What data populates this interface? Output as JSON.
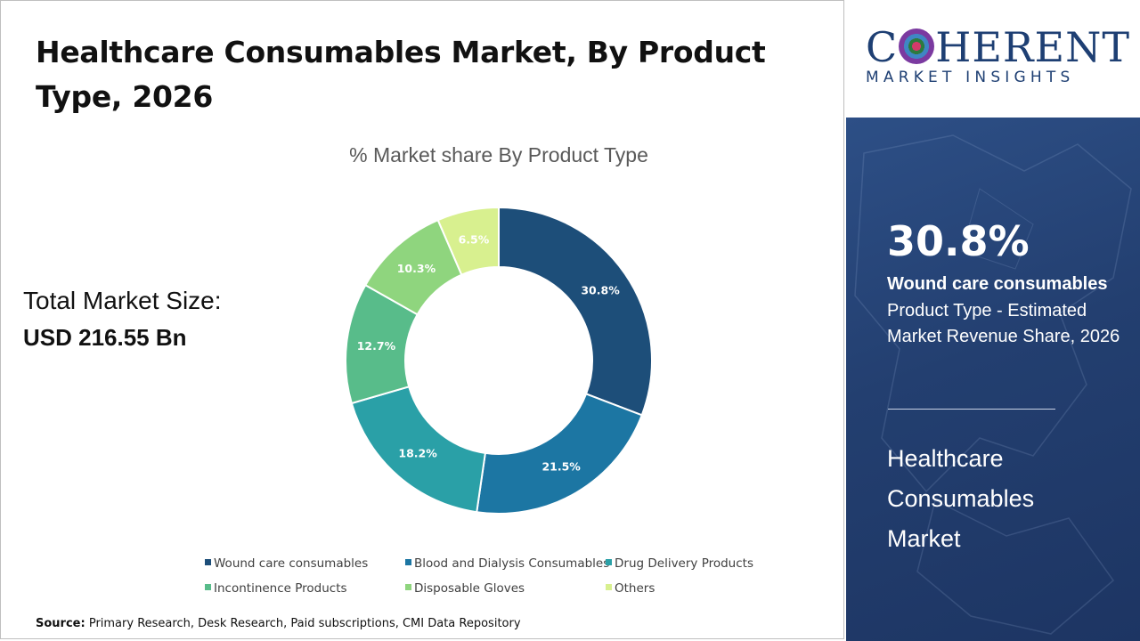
{
  "title": "Healthcare Consumables Market, By Product Type, 2026",
  "total_market": {
    "label": "Total Market Size:",
    "value": "USD 216.55 Bn"
  },
  "source": {
    "label": "Source:",
    "text": "Primary Research, Desk Research, Paid subscriptions, CMI Data Repository"
  },
  "logo": {
    "main_prefix": "C",
    "main_suffix": "HERENT",
    "sub": "MARKET INSIGHTS"
  },
  "highlight": {
    "percent": "30.8%",
    "segment": "Wound care consumables",
    "description": "Product Type - Estimated Market Revenue Share, 2026",
    "market_name": "Healthcare Consumables Market"
  },
  "chart_data": {
    "type": "donut",
    "title": "% Market share By Product Type",
    "categories": [
      "Wound care consumables",
      "Blood and Dialysis Consumables",
      "Drug Delivery Products",
      "Incontinence Products",
      "Disposable Gloves",
      "Others"
    ],
    "values": [
      30.8,
      21.5,
      18.2,
      12.7,
      10.3,
      6.5
    ],
    "labels": [
      "30.8%",
      "21.5%",
      "18.2%",
      "12.7%",
      "10.3%",
      "6.5%"
    ],
    "colors": [
      "#1d4e79",
      "#1c76a3",
      "#2aa0a7",
      "#58bc8a",
      "#8fd57e",
      "#d8f08f"
    ],
    "legend_position": "bottom"
  }
}
